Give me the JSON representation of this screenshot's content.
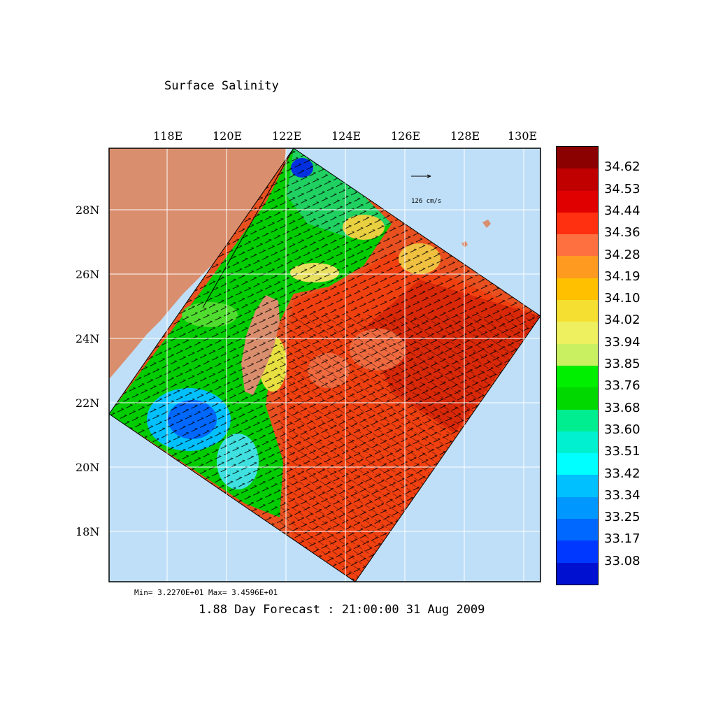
{
  "title": "Surface Salinity",
  "forecast": "1.88 Day Forecast : 21:00:00   31 Aug 2009",
  "minmax": "Min= 3.2270E+01   Max= 3.4596E+01",
  "vector_scale_label": "126 cm/s",
  "lon_labels": [
    "118E",
    "120E",
    "122E",
    "124E",
    "126E",
    "128E",
    "130E"
  ],
  "lat_labels": [
    "28N",
    "26N",
    "24N",
    "22N",
    "20N",
    "18N"
  ],
  "colorbar": {
    "colors": [
      "#8b0000",
      "#c00000",
      "#e00000",
      "#ff3010",
      "#ff7040",
      "#ff9a20",
      "#ffc000",
      "#f5df30",
      "#eef060",
      "#c8f060",
      "#00ee00",
      "#00d800",
      "#00ee90",
      "#00f0d0",
      "#00ffff",
      "#00c0ff",
      "#0098ff",
      "#0068ff",
      "#0038ff",
      "#0010d0"
    ],
    "labels": [
      "34.62",
      "34.53",
      "34.44",
      "34.36",
      "34.28",
      "34.19",
      "34.10",
      "34.02",
      "33.94",
      "33.85",
      "33.76",
      "33.68",
      "33.60",
      "33.51",
      "33.42",
      "33.34",
      "33.25",
      "33.17",
      "33.08"
    ]
  },
  "map_colors": {
    "ocean": "#bfdff8",
    "land": "#d98e6e",
    "grid": "#ffffff"
  }
}
